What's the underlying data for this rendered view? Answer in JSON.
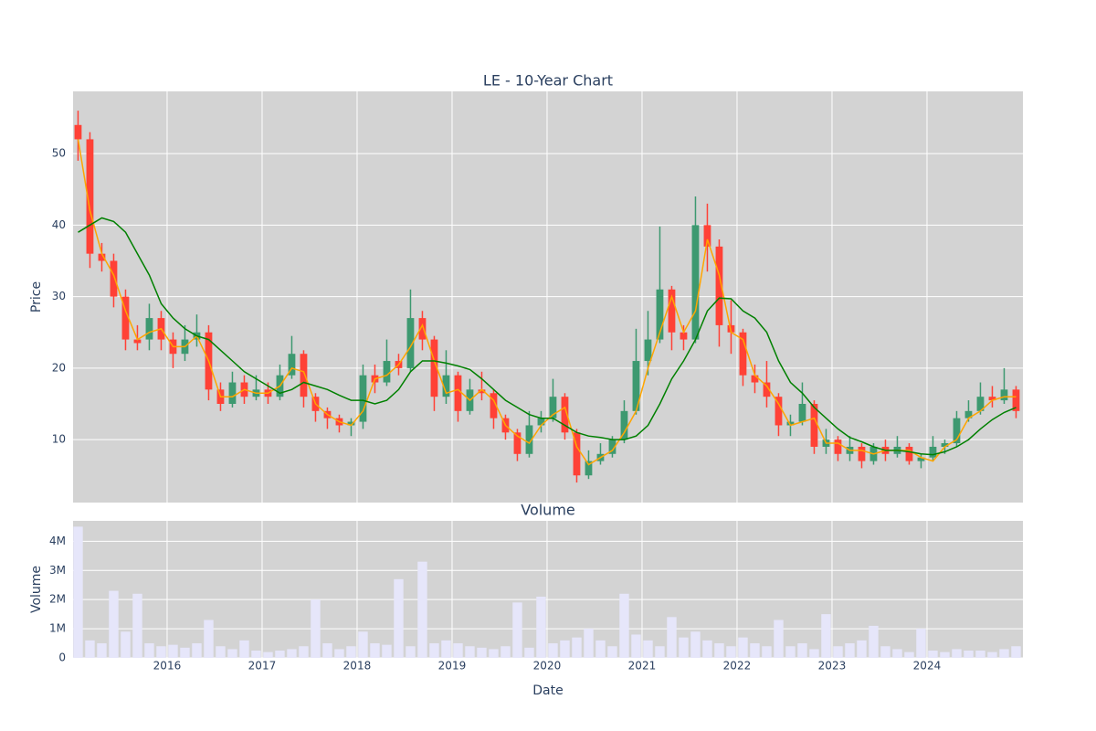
{
  "chart_data": [
    {
      "type": "candlestick",
      "title": "LE - 10-Year Chart",
      "ylabel": "Price",
      "x": [
        2015.0625,
        2015.1875,
        2015.3125,
        2015.4375,
        2015.5625,
        2015.6875,
        2015.8125,
        2015.9375,
        2016.0625,
        2016.1875,
        2016.3125,
        2016.4375,
        2016.5625,
        2016.6875,
        2016.8125,
        2016.9375,
        2017.0625,
        2017.1875,
        2017.3125,
        2017.4375,
        2017.5625,
        2017.6875,
        2017.8125,
        2017.9375,
        2018.0625,
        2018.1875,
        2018.3125,
        2018.4375,
        2018.5625,
        2018.6875,
        2018.8125,
        2018.9375,
        2019.0625,
        2019.1875,
        2019.3125,
        2019.4375,
        2019.5625,
        2019.6875,
        2019.8125,
        2019.9375,
        2020.0625,
        2020.1875,
        2020.3125,
        2020.4375,
        2020.5625,
        2020.6875,
        2020.8125,
        2020.9375,
        2021.0625,
        2021.1875,
        2021.3125,
        2021.4375,
        2021.5625,
        2021.6875,
        2021.8125,
        2021.9375,
        2022.0625,
        2022.1875,
        2022.3125,
        2022.4375,
        2022.5625,
        2022.6875,
        2022.8125,
        2022.9375,
        2023.0625,
        2023.1875,
        2023.3125,
        2023.4375,
        2023.5625,
        2023.6875,
        2023.8125,
        2023.9375,
        2024.0625,
        2024.1875,
        2024.3125,
        2024.4375,
        2024.5625,
        2024.6875,
        2024.8125,
        2024.9375
      ],
      "open": [
        54,
        52,
        36,
        35,
        30,
        24,
        24,
        27,
        24,
        22,
        24,
        25,
        17,
        15,
        18,
        16,
        17,
        16,
        19,
        22,
        16,
        14,
        13,
        12,
        12.5,
        19,
        18,
        21,
        20,
        27,
        24,
        16,
        19,
        14,
        17,
        16.5,
        13,
        11,
        8,
        12,
        13,
        16,
        11,
        5,
        7,
        8,
        10,
        14,
        21,
        24,
        31,
        25,
        24,
        40,
        37,
        26,
        25,
        19,
        18,
        16,
        12,
        12.5,
        15,
        9,
        10,
        8,
        9,
        7,
        9,
        8,
        9,
        7,
        7.5,
        9,
        9.5,
        13,
        14,
        16,
        15.5,
        17
      ],
      "high": [
        56,
        53,
        37.5,
        36,
        31,
        26,
        29,
        28,
        25,
        26,
        27.5,
        26,
        18,
        19.5,
        19,
        19,
        18,
        20.5,
        24.5,
        22.5,
        16.5,
        14.5,
        13.5,
        13,
        20.5,
        20.5,
        24,
        22,
        31,
        28,
        24.5,
        22.5,
        19.5,
        18.5,
        19.5,
        17,
        13.5,
        11.5,
        14,
        14,
        18.5,
        16.5,
        11.5,
        8.5,
        9.5,
        10.5,
        15.5,
        25.5,
        28,
        39.8,
        31.5,
        26,
        44,
        43,
        38,
        29.5,
        25.5,
        20.5,
        21,
        16.5,
        13.5,
        18,
        15.5,
        11.5,
        10.5,
        10.5,
        9.5,
        9.5,
        10,
        10.5,
        9.5,
        8,
        10.5,
        10,
        14,
        15.5,
        18,
        17.5,
        20,
        17.5
      ],
      "low": [
        49,
        34,
        33.5,
        28.5,
        22.5,
        22.5,
        22.5,
        22.5,
        20,
        21,
        23,
        15.5,
        14,
        14.5,
        15,
        15.5,
        15,
        15.5,
        18.5,
        14.5,
        12.5,
        11.5,
        11,
        10.5,
        11.5,
        16.5,
        17.5,
        19,
        19.5,
        22.5,
        14,
        15,
        12.5,
        13.5,
        15.5,
        11.5,
        10,
        7,
        7.5,
        11,
        12.5,
        10,
        4,
        4.5,
        6.5,
        7.5,
        9.5,
        13.5,
        19,
        23.5,
        22.5,
        22.5,
        23.5,
        33.5,
        23,
        22,
        17.5,
        16.5,
        14.5,
        10.5,
        10.5,
        12,
        8,
        8,
        7,
        7,
        6,
        6.5,
        7,
        7.5,
        6.5,
        6,
        7,
        8,
        9,
        12.5,
        13.5,
        14.5,
        15,
        13
      ],
      "close": [
        52,
        36,
        35,
        30,
        24,
        23.5,
        27,
        24,
        22,
        24,
        25,
        17,
        15,
        18,
        16,
        17,
        16,
        19,
        22,
        16,
        14,
        13,
        12,
        12.5,
        19,
        18,
        21,
        20,
        27,
        24,
        16,
        19,
        14,
        17,
        16.5,
        13,
        11,
        8,
        12,
        13,
        16,
        11,
        5,
        7,
        8,
        10,
        14,
        21,
        24,
        31,
        25,
        24,
        40,
        37,
        26,
        25,
        19,
        18,
        16,
        12,
        12.5,
        15,
        9,
        10,
        8,
        9,
        7,
        9,
        8,
        9,
        7,
        7.5,
        9,
        9.5,
        13,
        14,
        16,
        15.5,
        17,
        14
      ],
      "increasing_color": "#3d9970",
      "decreasing_color": "#ff4136",
      "series": [
        {
          "color": "#ffa500",
          "values": [
            52,
            42,
            36,
            33,
            28,
            24,
            25,
            25.5,
            23,
            23,
            24.5,
            21,
            16,
            16,
            17,
            16.5,
            16.5,
            17.5,
            20,
            19.5,
            15,
            13.5,
            12.5,
            12,
            14,
            18.5,
            19,
            20.5,
            23,
            26,
            21,
            16.5,
            17,
            15.5,
            17,
            15.5,
            12,
            10.5,
            9.5,
            12,
            13.5,
            14.5,
            9,
            6.5,
            7.5,
            8.5,
            11,
            14,
            20,
            25,
            30,
            25,
            28,
            38,
            33,
            25,
            24,
            19,
            17.5,
            15,
            12,
            12.5,
            13,
            9.5,
            9.5,
            8.5,
            8.5,
            8,
            8.5,
            8.5,
            8.5,
            7.5,
            7,
            9,
            10,
            13,
            14,
            15.5,
            16,
            16
          ]
        },
        {
          "color": "#008000",
          "values": [
            39,
            40,
            41,
            40.5,
            39,
            36,
            33,
            29,
            27,
            25.5,
            24.5,
            24,
            22.5,
            21,
            19.5,
            18.5,
            17.5,
            16.5,
            17,
            18,
            17.5,
            17,
            16.2,
            15.5,
            15.5,
            15,
            15.5,
            17,
            19.5,
            21,
            21,
            20.7,
            20.3,
            19.8,
            18.5,
            17,
            15.5,
            14.5,
            13.5,
            13,
            13,
            12,
            11,
            10.5,
            10.3,
            10,
            10,
            10.5,
            12,
            15,
            18.5,
            21,
            24,
            28,
            29.8,
            29.7,
            28,
            27,
            25,
            21,
            18,
            16.5,
            14.5,
            13,
            11.5,
            10.3,
            9.7,
            9,
            8.5,
            8.5,
            8.3,
            8,
            7.9,
            8.3,
            9,
            10,
            11.5,
            12.8,
            13.8,
            14.5
          ]
        }
      ],
      "xlim": [
        2015.01,
        2025.01
      ],
      "xticks": [
        2016,
        2017,
        2018,
        2019,
        2020,
        2021,
        2022,
        2023,
        2024
      ],
      "ylim": [
        1.2,
        58.7
      ],
      "yticks": [
        10,
        20,
        30,
        40,
        50
      ],
      "grid": true
    },
    {
      "type": "bar",
      "title": "Volume",
      "xlabel": "Date",
      "ylabel": "Volume",
      "x": [
        2015.0625,
        2015.1875,
        2015.3125,
        2015.4375,
        2015.5625,
        2015.6875,
        2015.8125,
        2015.9375,
        2016.0625,
        2016.1875,
        2016.3125,
        2016.4375,
        2016.5625,
        2016.6875,
        2016.8125,
        2016.9375,
        2017.0625,
        2017.1875,
        2017.3125,
        2017.4375,
        2017.5625,
        2017.6875,
        2017.8125,
        2017.9375,
        2018.0625,
        2018.1875,
        2018.3125,
        2018.4375,
        2018.5625,
        2018.6875,
        2018.8125,
        2018.9375,
        2019.0625,
        2019.1875,
        2019.3125,
        2019.4375,
        2019.5625,
        2019.6875,
        2019.8125,
        2019.9375,
        2020.0625,
        2020.1875,
        2020.3125,
        2020.4375,
        2020.5625,
        2020.6875,
        2020.8125,
        2020.9375,
        2021.0625,
        2021.1875,
        2021.3125,
        2021.4375,
        2021.5625,
        2021.6875,
        2021.8125,
        2021.9375,
        2022.0625,
        2022.1875,
        2022.3125,
        2022.4375,
        2022.5625,
        2022.6875,
        2022.8125,
        2022.9375,
        2023.0625,
        2023.1875,
        2023.3125,
        2023.4375,
        2023.5625,
        2023.6875,
        2023.8125,
        2023.9375,
        2024.0625,
        2024.1875,
        2024.3125,
        2024.4375,
        2024.5625,
        2024.6875,
        2024.8125,
        2024.9375
      ],
      "values": [
        4500000,
        600000,
        500000,
        2300000,
        900000,
        2200000,
        500000,
        400000,
        450000,
        350000,
        500000,
        1300000,
        400000,
        300000,
        600000,
        250000,
        200000,
        250000,
        300000,
        400000,
        2000000,
        500000,
        300000,
        400000,
        900000,
        500000,
        450000,
        2700000,
        400000,
        3300000,
        500000,
        600000,
        500000,
        400000,
        350000,
        300000,
        400000,
        1900000,
        350000,
        2100000,
        500000,
        600000,
        700000,
        1000000,
        600000,
        400000,
        2200000,
        800000,
        600000,
        400000,
        1400000,
        700000,
        900000,
        600000,
        500000,
        400000,
        700000,
        500000,
        400000,
        1300000,
        400000,
        500000,
        300000,
        1500000,
        400000,
        500000,
        600000,
        1100000,
        400000,
        300000,
        200000,
        1000000,
        250000,
        200000,
        300000,
        250000,
        250000,
        200000,
        300000,
        400000
      ],
      "color": "#e6e6fa",
      "xlim": [
        2015.01,
        2025.01
      ],
      "xticks": [
        2016,
        2017,
        2018,
        2019,
        2020,
        2021,
        2022,
        2023,
        2024
      ],
      "ylim": [
        0,
        4700000
      ],
      "yticks": [
        0,
        {
          "value": 1000000,
          "label": "1M"
        },
        {
          "value": 2000000,
          "label": "2M"
        },
        {
          "value": 3000000,
          "label": "3M"
        },
        {
          "value": 4000000,
          "label": "4M"
        }
      ],
      "grid": true
    }
  ]
}
